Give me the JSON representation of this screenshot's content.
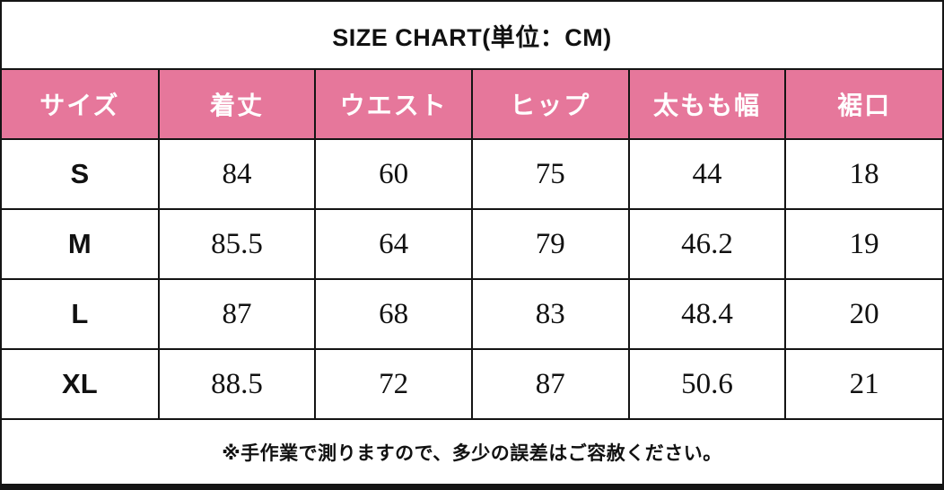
{
  "title": "SIZE CHART(単位：CM)",
  "colors": {
    "header_bg": "#E6779B",
    "header_text": "#FFFFFF",
    "border": "#141414",
    "text": "#111111",
    "background": "#FFFFFF"
  },
  "chart_data": {
    "type": "table",
    "title": "SIZE CHART(単位：CM)",
    "unit": "CM",
    "columns": [
      "サイズ",
      "着丈",
      "ウエスト",
      "ヒップ",
      "太もも幅",
      "裾口"
    ],
    "rows": [
      [
        "S",
        84,
        60,
        75,
        44,
        18
      ],
      [
        "M",
        85.5,
        64,
        79,
        46.2,
        19
      ],
      [
        "L",
        87,
        68,
        83,
        48.4,
        20
      ],
      [
        "XL",
        88.5,
        72,
        87,
        50.6,
        21
      ]
    ],
    "note": "※手作業で測りますので、多少の誤差はご容赦ください。"
  }
}
